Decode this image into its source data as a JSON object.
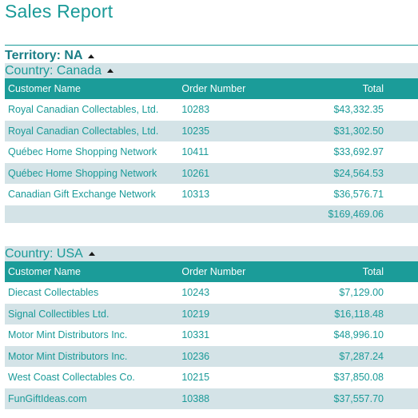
{
  "report": {
    "title": "Sales Report",
    "territory_label": "Territory: NA"
  },
  "columns": {
    "customer": "Customer Name",
    "order": "Order Number",
    "total": "Total"
  },
  "groups": [
    {
      "country_label": "Country: Canada",
      "rows": [
        {
          "customer": "Royal Canadian Collectables, Ltd.",
          "order": "10283",
          "total": "$43,332.35"
        },
        {
          "customer": "Royal Canadian Collectables, Ltd.",
          "order": "10235",
          "total": "$31,302.50"
        },
        {
          "customer": "Québec Home Shopping Network",
          "order": "10411",
          "total": "$33,692.97"
        },
        {
          "customer": "Québec Home Shopping Network",
          "order": "10261",
          "total": "$24,564.53"
        },
        {
          "customer": "Canadian Gift Exchange Network",
          "order": "10313",
          "total": "$36,576.71"
        }
      ],
      "subtotal": "$169,469.06"
    },
    {
      "country_label": "Country: USA",
      "rows": [
        {
          "customer": "Diecast Collectables",
          "order": "10243",
          "total": "$7,129.00"
        },
        {
          "customer": "Signal Collectibles Ltd.",
          "order": "10219",
          "total": "$16,118.48"
        },
        {
          "customer": "Motor Mint Distributors Inc.",
          "order": "10331",
          "total": "$48,996.10"
        },
        {
          "customer": "Motor Mint Distributors Inc.",
          "order": "10236",
          "total": "$7,287.24"
        },
        {
          "customer": "West Coast Collectables Co.",
          "order": "10215",
          "total": "$37,850.08"
        },
        {
          "customer": "FunGiftIdeas.com",
          "order": "10388",
          "total": "$37,557.70"
        }
      ]
    }
  ]
}
